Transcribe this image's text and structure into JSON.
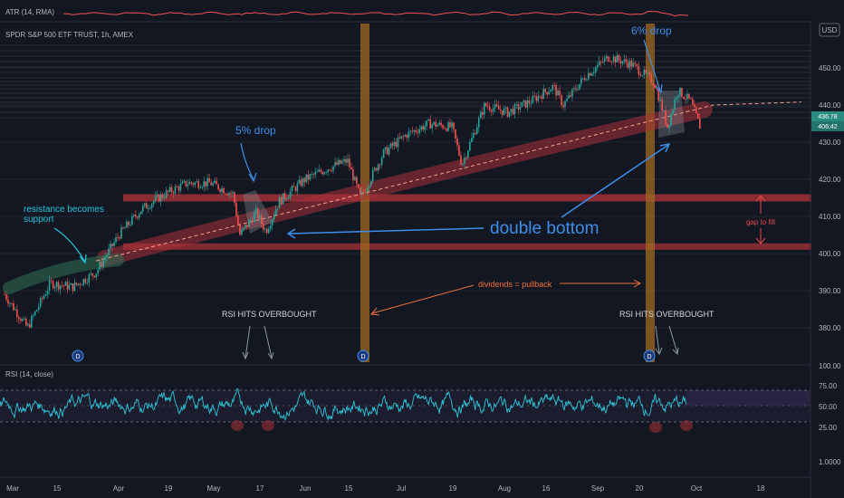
{
  "atr": {
    "label": "ATR (14, RMA)"
  },
  "header": {
    "symbol_title": "SPDR S&P 500 ETF TRUST, 1h, AMEX"
  },
  "currency": {
    "label": "USD"
  },
  "last_price": {
    "primary": "436.78",
    "secondary": "406:42"
  },
  "annotations": {
    "five_drop": "5% drop",
    "six_drop": "6% drop",
    "resistance_line1": "resistance becomes",
    "resistance_line2": "support",
    "double_bottom": "double bottom",
    "gap_to_fill": "gap to fill",
    "dividends": "dividends = pullback",
    "rsi_overbought_left": "RSI HITS OVERBOUGHT",
    "rsi_overbought_right": "RSI HITS OVERBOUGHT",
    "dividend_badge": "D"
  },
  "rsi": {
    "label": "RSI (14, close)"
  },
  "colors": {
    "background": "#131722",
    "candle_up": "#26a69a",
    "candle_down": "#ef5350",
    "orange_band": "#a06a22",
    "red_zone": "#a83238",
    "blue_annotation": "#3d8ee8",
    "rsi_line": "#2ec4d6"
  },
  "chart_data": {
    "type": "candlestick",
    "price_axis": {
      "ticks": [
        380,
        390,
        400,
        410,
        420,
        430,
        440,
        450
      ],
      "range": [
        372,
        458
      ]
    },
    "rsi_axis": {
      "ticks": [
        "100.00",
        "75.00",
        "50.00",
        "25.00",
        "1.0000"
      ],
      "levels": [
        70,
        30
      ]
    },
    "time_axis": {
      "ticks": [
        "Mar",
        "15",
        "Apr",
        "19",
        "May",
        "17",
        "Jun",
        "15",
        "Jul",
        "19",
        "Aug",
        "16",
        "Sep",
        "20",
        "Oct",
        "18"
      ]
    },
    "price_path": [
      [
        "Mar 1",
        389
      ],
      [
        "Mar 8",
        380
      ],
      [
        "Mar 15",
        392
      ],
      [
        "Mar 22",
        391
      ],
      [
        "Mar 29",
        395
      ],
      [
        "Apr 5",
        405
      ],
      [
        "Apr 12",
        412
      ],
      [
        "Apr 19",
        416
      ],
      [
        "Apr 26",
        419
      ],
      [
        "May 3",
        419
      ],
      [
        "May 10",
        416
      ],
      [
        "May 12",
        405
      ],
      [
        "May 17",
        411
      ],
      [
        "May 20",
        406
      ],
      [
        "May 24",
        414
      ],
      [
        "Jun 1",
        420
      ],
      [
        "Jun 8",
        423
      ],
      [
        "Jun 14",
        425
      ],
      [
        "Jun 18",
        415
      ],
      [
        "Jun 25",
        427
      ],
      [
        "Jul 2",
        432
      ],
      [
        "Jul 9",
        435
      ],
      [
        "Jul 16",
        434
      ],
      [
        "Jul 19",
        424
      ],
      [
        "Jul 26",
        440
      ],
      [
        "Aug 2",
        438
      ],
      [
        "Aug 9",
        441
      ],
      [
        "Aug 16",
        445
      ],
      [
        "Aug 19",
        440
      ],
      [
        "Aug 26",
        448
      ],
      [
        "Sep 2",
        453
      ],
      [
        "Sep 9",
        451
      ],
      [
        "Sep 16",
        446
      ],
      [
        "Sep 20",
        434
      ],
      [
        "Sep 23",
        444
      ],
      [
        "Sep 27",
        441
      ],
      [
        "Sep 30",
        434
      ]
    ],
    "trendline": {
      "from": [
        "Mar 29",
        398
      ],
      "to": [
        "Oct 4",
        440
      ]
    },
    "gap_zone": {
      "upper": 415,
      "lower": 402
    }
  }
}
